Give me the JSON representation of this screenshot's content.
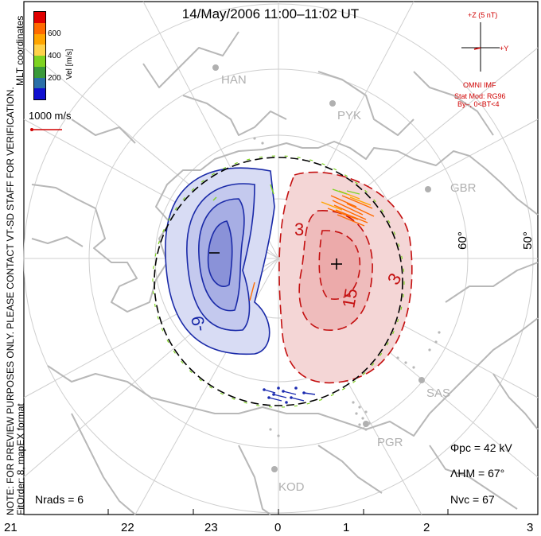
{
  "title": "14/May/2006 11:00–11:02 UT",
  "side_notes": {
    "preview": "NOTE: FOR PREVIEW PURPOSES ONLY. PLEASE CONTACT VT-SD STAFF FOR VERIFICATION.",
    "fit": "FitOrder: 8, mapEX format",
    "coords": "MLT coordinates"
  },
  "colorbar": {
    "label": "Vel [m/s]",
    "ticks": [
      "600",
      "400",
      "200"
    ],
    "colors": [
      "#e00000",
      "#ff6a00",
      "#ffa500",
      "#ffd24a",
      "#7ed321",
      "#3a9a3a",
      "#2a6fa8",
      "#1010d0"
    ]
  },
  "scale_vector": {
    "label": "1000 m/s",
    "color": "#d00000"
  },
  "imf": {
    "z_label": "+Z (5 nT)",
    "y_label": "+Y",
    "source": "OMNI IMF",
    "model": "Stat Mod: RG96",
    "condition": "By–, 0<BT<4"
  },
  "sites": [
    "HAN",
    "PYK",
    "GBR",
    "SAS",
    "PGR",
    "KOD"
  ],
  "lat_labels": [
    "60°",
    "50°"
  ],
  "contour_labels": [
    "3",
    "3",
    "15",
    "-9"
  ],
  "mlt_ticks": [
    "21",
    "22",
    "23",
    "0",
    "1",
    "2",
    "3"
  ],
  "stats": {
    "phi_pc": "Φpc = 42 kV",
    "lambda_hm": "ΛHM = 67°",
    "n_vc": "Nvc = 67",
    "n_rads": "Nrads = 6"
  }
}
